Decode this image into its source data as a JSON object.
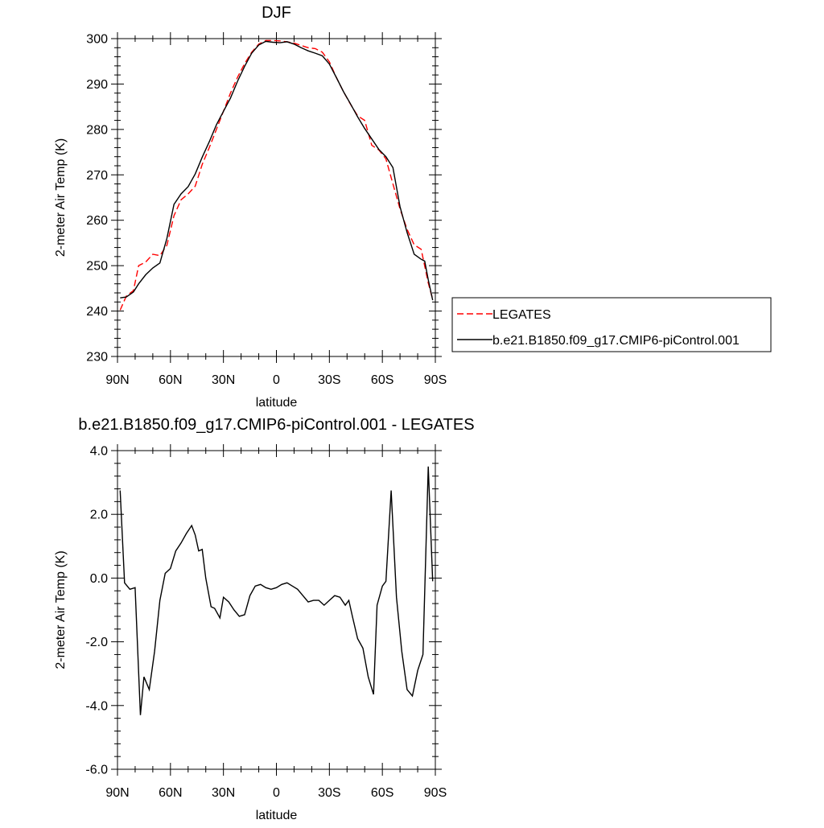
{
  "chart_data": [
    {
      "type": "line",
      "title": "DJF",
      "xlabel": "latitude",
      "ylabel": "2-meter Air Temp (K)",
      "xlim": [
        -90,
        90
      ],
      "ylim": [
        230,
        300
      ],
      "xticks": [
        {
          "value": -90,
          "label": "90N"
        },
        {
          "value": -60,
          "label": "60N"
        },
        {
          "value": -30,
          "label": "30N"
        },
        {
          "value": 0,
          "label": "0"
        },
        {
          "value": 30,
          "label": "30S"
        },
        {
          "value": 60,
          "label": "60S"
        },
        {
          "value": 90,
          "label": "90S"
        }
      ],
      "yticks": [
        {
          "value": 230,
          "label": "230"
        },
        {
          "value": 240,
          "label": "240"
        },
        {
          "value": 250,
          "label": "250"
        },
        {
          "value": 260,
          "label": "260"
        },
        {
          "value": 270,
          "label": "270"
        },
        {
          "value": 280,
          "label": "280"
        },
        {
          "value": 290,
          "label": "290"
        },
        {
          "value": 300,
          "label": "300"
        }
      ],
      "grid": false,
      "legend_position": "right",
      "series": [
        {
          "name": "LEGATES",
          "color": "#ff0000",
          "dash": "dashed",
          "x": [
            -88.5,
            -85,
            -81,
            -78,
            -74,
            -70,
            -66,
            -62,
            -58,
            -54,
            -50,
            -46,
            -42,
            -38,
            -34,
            -30,
            -26,
            -22,
            -18,
            -14,
            -10,
            -6,
            -2,
            2,
            6,
            10,
            14,
            18,
            22,
            26,
            30,
            34,
            38,
            42,
            46,
            50,
            54,
            58,
            62,
            66,
            70,
            74,
            78,
            82,
            84,
            86,
            88.5
          ],
          "y": [
            240.2,
            243.3,
            244.5,
            250.0,
            250.8,
            252.5,
            252.2,
            254.5,
            261.0,
            264.5,
            265.8,
            267.5,
            272.3,
            276.0,
            280.0,
            284.0,
            288.0,
            291.5,
            294.5,
            297.0,
            298.8,
            299.6,
            299.6,
            299.5,
            299.3,
            299.0,
            298.5,
            298.0,
            297.8,
            297.0,
            294.9,
            291.4,
            288.3,
            285.5,
            283.0,
            282.0,
            276.5,
            275.5,
            273.5,
            268.0,
            262.5,
            258.0,
            254.6,
            253.6,
            249.9,
            246.2,
            242.6
          ]
        },
        {
          "name": "b.e21.B1850.f09_g17.CMIP6-piControl.001",
          "color": "#000000",
          "dash": "solid",
          "x": [
            -88.5,
            -85,
            -81,
            -78,
            -74,
            -70,
            -66,
            -62,
            -58,
            -54,
            -50,
            -46,
            -42,
            -38,
            -34,
            -30,
            -26,
            -22,
            -18,
            -14,
            -10,
            -6,
            -2,
            2,
            6,
            10,
            14,
            18,
            22,
            26,
            30,
            34,
            38,
            42,
            46,
            50,
            54,
            58,
            62,
            66,
            70,
            74,
            78,
            82,
            84,
            86,
            88.5
          ],
          "y": [
            242.9,
            243.1,
            244.2,
            246.0,
            248.0,
            249.5,
            250.6,
            256.0,
            263.5,
            265.8,
            267.4,
            270.2,
            273.9,
            277.3,
            281.0,
            284.0,
            286.9,
            290.6,
            293.9,
            296.8,
            298.6,
            299.4,
            299.2,
            299.1,
            299.3,
            298.8,
            298.0,
            297.3,
            296.8,
            296.2,
            294.4,
            291.4,
            288.3,
            285.6,
            282.8,
            280.2,
            277.9,
            275.6,
            274.0,
            271.6,
            263.0,
            257.3,
            252.5,
            251.4,
            251.0,
            246.9,
            242.4
          ]
        }
      ]
    },
    {
      "type": "line",
      "title": "b.e21.B1850.f09_g17.CMIP6-piControl.001 - LEGATES",
      "xlabel": "latitude",
      "ylabel": "2-meter Air Temp (K)",
      "xlim": [
        -90,
        90
      ],
      "ylim": [
        -6.0,
        4.0
      ],
      "xticks": [
        {
          "value": -90,
          "label": "90N"
        },
        {
          "value": -60,
          "label": "60N"
        },
        {
          "value": -30,
          "label": "30N"
        },
        {
          "value": 0,
          "label": "0"
        },
        {
          "value": 30,
          "label": "30S"
        },
        {
          "value": 60,
          "label": "60S"
        },
        {
          "value": 90,
          "label": "90S"
        }
      ],
      "yticks": [
        {
          "value": -6.0,
          "label": "-6.0"
        },
        {
          "value": -4.0,
          "label": "-4.0"
        },
        {
          "value": -2.0,
          "label": "-2.0"
        },
        {
          "value": 0.0,
          "label": "0.0"
        },
        {
          "value": 2.0,
          "label": "2.0"
        },
        {
          "value": 4.0,
          "label": "4.0"
        }
      ],
      "grid": false,
      "series": [
        {
          "color": "#000000",
          "dash": "solid",
          "x": [
            -88.5,
            -86,
            -83,
            -80,
            -77,
            -75,
            -72,
            -69,
            -66,
            -63,
            -60,
            -57,
            -54,
            -51,
            -48,
            -46,
            -44,
            -42,
            -40,
            -37,
            -35,
            -32,
            -30,
            -27,
            -24,
            -21,
            -18,
            -15,
            -12,
            -9,
            -6,
            -3,
            0,
            3,
            6,
            9,
            12,
            15,
            18,
            21,
            24,
            27,
            30,
            33,
            36,
            39,
            41,
            43,
            46,
            49,
            52,
            55,
            57,
            60,
            62,
            65,
            68,
            71,
            74,
            77,
            80,
            83,
            86,
            88.5
          ],
          "y": [
            2.75,
            -0.15,
            -0.35,
            -0.3,
            -4.3,
            -3.1,
            -3.5,
            -2.3,
            -0.7,
            0.15,
            0.3,
            0.85,
            1.1,
            1.4,
            1.65,
            1.35,
            0.85,
            0.9,
            0.0,
            -0.9,
            -0.95,
            -1.25,
            -0.6,
            -0.75,
            -1.0,
            -1.2,
            -1.15,
            -0.55,
            -0.25,
            -0.2,
            -0.3,
            -0.35,
            -0.3,
            -0.2,
            -0.15,
            -0.25,
            -0.35,
            -0.55,
            -0.75,
            -0.7,
            -0.7,
            -0.85,
            -0.7,
            -0.55,
            -0.6,
            -0.85,
            -0.7,
            -1.2,
            -1.9,
            -2.2,
            -3.1,
            -3.65,
            -0.85,
            -0.25,
            -0.1,
            2.75,
            -0.6,
            -2.3,
            -3.5,
            -3.7,
            -2.9,
            -2.4,
            3.5,
            -0.1
          ]
        }
      ]
    }
  ]
}
